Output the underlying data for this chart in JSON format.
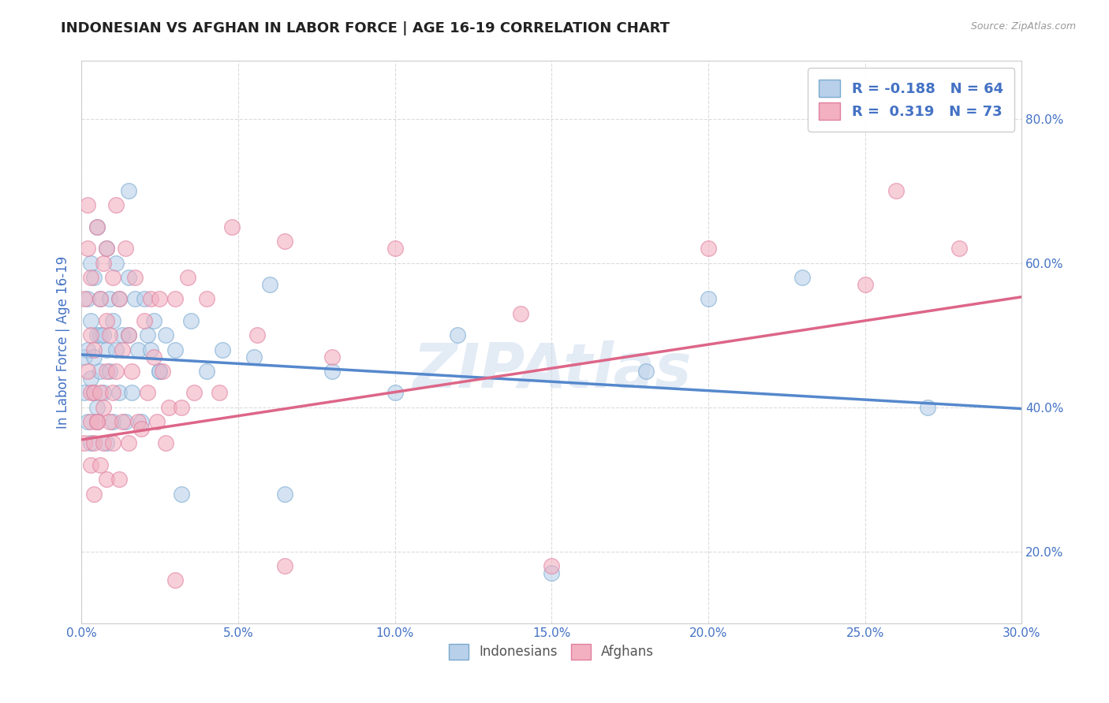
{
  "title": "INDONESIAN VS AFGHAN IN LABOR FORCE | AGE 16-19 CORRELATION CHART",
  "source_text": "Source: ZipAtlas.com",
  "ylabel": "In Labor Force | Age 16-19",
  "xlim": [
    0.0,
    0.3
  ],
  "ylim": [
    0.1,
    0.88
  ],
  "xticks": [
    0.0,
    0.05,
    0.1,
    0.15,
    0.2,
    0.25,
    0.3
  ],
  "xtick_labels": [
    "0.0%",
    "5.0%",
    "10.0%",
    "15.0%",
    "20.0%",
    "25.0%",
    "30.0%"
  ],
  "ytick_labels": [
    "20.0%",
    "40.0%",
    "60.0%",
    "80.0%"
  ],
  "yticks": [
    0.2,
    0.4,
    0.6,
    0.8
  ],
  "legend_r1": "R = -0.188",
  "legend_n1": "N = 64",
  "legend_r2": "R =  0.319",
  "legend_n2": "N = 73",
  "blue_fill": "#B8D0EA",
  "pink_fill": "#F2B0C0",
  "blue_edge": "#7AAAD0",
  "pink_edge": "#E080A0",
  "blue_line": "#5588CC",
  "pink_line": "#DD6688",
  "text_color": "#4472C4",
  "watermark": "ZIPAtlas",
  "background_color": "#FFFFFF",
  "grid_color": "#CCCCCC",
  "indonesian_x": [
    0.001,
    0.001,
    0.002,
    0.002,
    0.002,
    0.003,
    0.003,
    0.003,
    0.003,
    0.004,
    0.004,
    0.004,
    0.005,
    0.005,
    0.005,
    0.005,
    0.006,
    0.006,
    0.006,
    0.007,
    0.007,
    0.008,
    0.008,
    0.008,
    0.009,
    0.009,
    0.01,
    0.01,
    0.011,
    0.011,
    0.012,
    0.012,
    0.013,
    0.014,
    0.015,
    0.015,
    0.016,
    0.017,
    0.018,
    0.019,
    0.02,
    0.021,
    0.022,
    0.023,
    0.025,
    0.027,
    0.03,
    0.032,
    0.035,
    0.04,
    0.045,
    0.055,
    0.065,
    0.08,
    0.1,
    0.12,
    0.15,
    0.18,
    0.2,
    0.23,
    0.27,
    0.015,
    0.025,
    0.06
  ],
  "indonesian_y": [
    0.47,
    0.42,
    0.55,
    0.38,
    0.48,
    0.52,
    0.44,
    0.6,
    0.35,
    0.47,
    0.58,
    0.42,
    0.5,
    0.4,
    0.65,
    0.38,
    0.45,
    0.55,
    0.5,
    0.5,
    0.42,
    0.48,
    0.62,
    0.35,
    0.55,
    0.45,
    0.52,
    0.38,
    0.48,
    0.6,
    0.42,
    0.55,
    0.5,
    0.38,
    0.58,
    0.5,
    0.42,
    0.55,
    0.48,
    0.38,
    0.55,
    0.5,
    0.48,
    0.52,
    0.45,
    0.5,
    0.48,
    0.28,
    0.52,
    0.45,
    0.48,
    0.47,
    0.28,
    0.45,
    0.42,
    0.5,
    0.17,
    0.45,
    0.55,
    0.58,
    0.4,
    0.7,
    0.45,
    0.57
  ],
  "afghan_x": [
    0.001,
    0.001,
    0.002,
    0.002,
    0.002,
    0.003,
    0.003,
    0.003,
    0.003,
    0.004,
    0.004,
    0.004,
    0.005,
    0.005,
    0.006,
    0.006,
    0.007,
    0.007,
    0.008,
    0.008,
    0.008,
    0.009,
    0.009,
    0.01,
    0.01,
    0.011,
    0.011,
    0.012,
    0.013,
    0.013,
    0.014,
    0.015,
    0.015,
    0.016,
    0.017,
    0.018,
    0.019,
    0.02,
    0.021,
    0.022,
    0.023,
    0.024,
    0.025,
    0.026,
    0.027,
    0.028,
    0.03,
    0.032,
    0.034,
    0.036,
    0.04,
    0.044,
    0.048,
    0.056,
    0.065,
    0.08,
    0.1,
    0.14,
    0.2,
    0.26,
    0.28,
    0.003,
    0.004,
    0.005,
    0.006,
    0.007,
    0.008,
    0.01,
    0.012,
    0.03,
    0.065,
    0.15,
    0.25
  ],
  "afghan_y": [
    0.35,
    0.55,
    0.62,
    0.45,
    0.68,
    0.5,
    0.42,
    0.58,
    0.38,
    0.35,
    0.48,
    0.42,
    0.65,
    0.38,
    0.55,
    0.42,
    0.6,
    0.35,
    0.52,
    0.45,
    0.62,
    0.38,
    0.5,
    0.58,
    0.42,
    0.68,
    0.45,
    0.55,
    0.38,
    0.48,
    0.62,
    0.35,
    0.5,
    0.45,
    0.58,
    0.38,
    0.37,
    0.52,
    0.42,
    0.55,
    0.47,
    0.38,
    0.55,
    0.45,
    0.35,
    0.4,
    0.55,
    0.4,
    0.58,
    0.42,
    0.55,
    0.42,
    0.65,
    0.5,
    0.63,
    0.47,
    0.62,
    0.53,
    0.62,
    0.7,
    0.62,
    0.32,
    0.28,
    0.38,
    0.32,
    0.4,
    0.3,
    0.35,
    0.3,
    0.16,
    0.18,
    0.18,
    0.57
  ],
  "blue_line_x0": 0.0,
  "blue_line_y0": 0.473,
  "blue_line_x1": 0.3,
  "blue_line_y1": 0.398,
  "pink_line_x0": 0.0,
  "pink_line_y0": 0.355,
  "pink_line_x1": 0.3,
  "pink_line_y1": 0.553
}
